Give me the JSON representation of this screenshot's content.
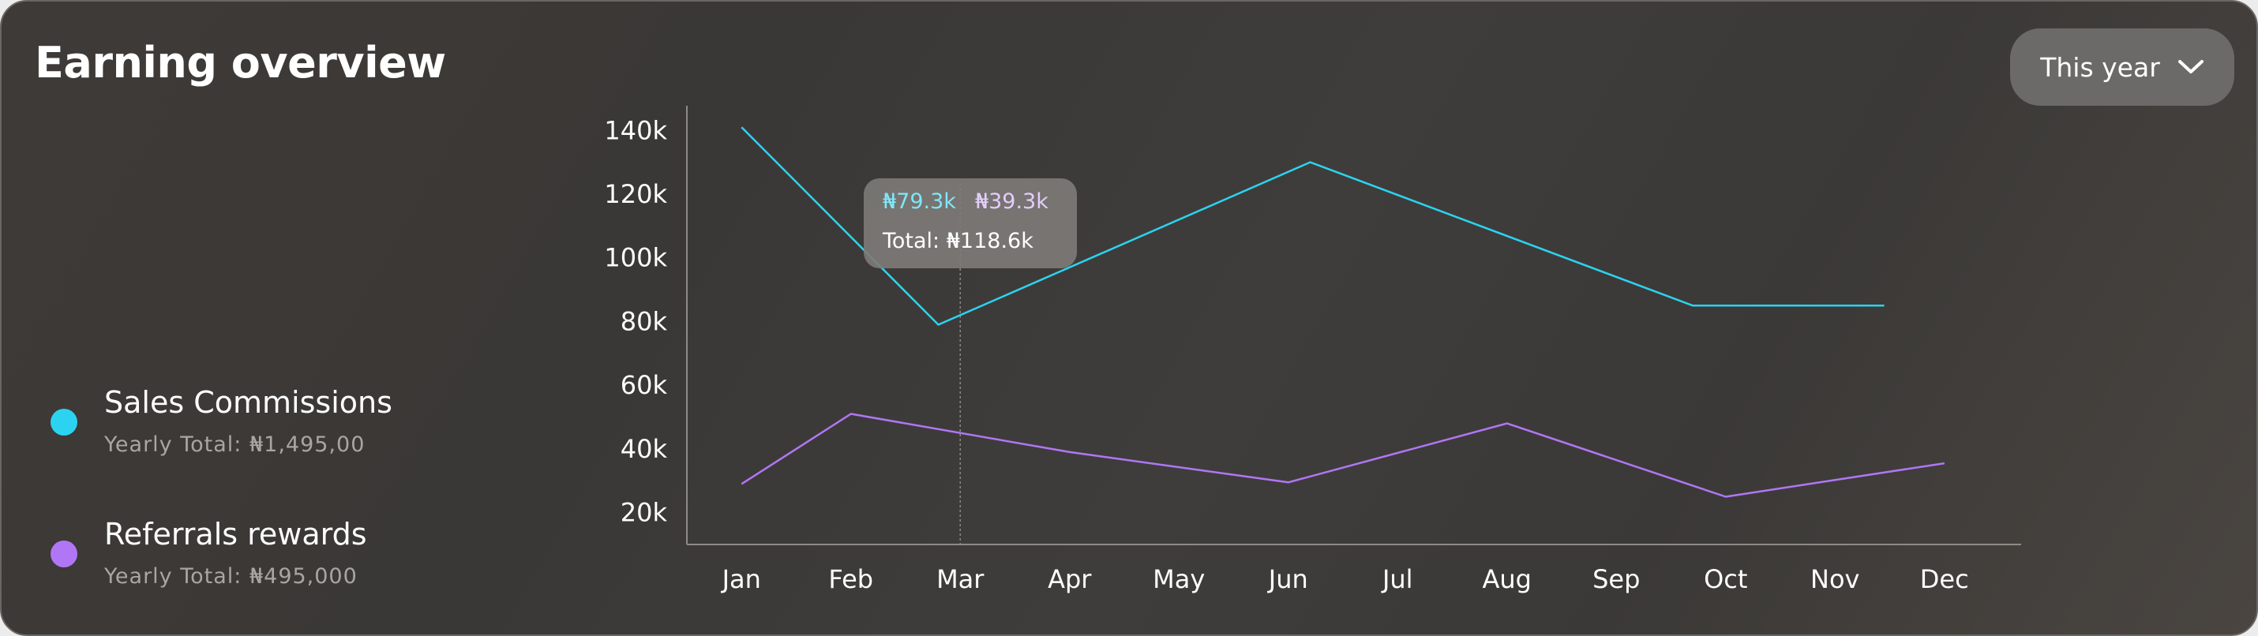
{
  "header": {
    "title": "Earning overview",
    "period_label": "This year",
    "period_icon": "chevron-down-icon"
  },
  "legend": [
    {
      "name": "Sales Commissions",
      "total": "Yearly Total: ₦1,495,00",
      "color": "#2bd3f0"
    },
    {
      "name": "Referrals rewards",
      "total": "Yearly Total: ₦495,000",
      "color": "#b176f5"
    }
  ],
  "tooltip": {
    "value_1": "₦79.3k",
    "value_2": "₦39.3k",
    "total": "Total: ₦118.6k",
    "month": "Mar"
  },
  "chart_data": {
    "type": "line",
    "categories": [
      "Jan",
      "Feb",
      "Mar",
      "Apr",
      "May",
      "Jun",
      "Jul",
      "Aug",
      "Sep",
      "Oct",
      "Nov",
      "Dec"
    ],
    "yticks": [
      "140k",
      "120k",
      "100k",
      "80k",
      "60k",
      "40k",
      "20k"
    ],
    "ylim": [
      10000,
      147000
    ],
    "grid": false,
    "series": [
      {
        "name": "Sales Commissions",
        "color": "#2bd3f0",
        "x": [
          0.5,
          2.3,
          5.7,
          9.2,
          10.95
        ],
        "y": [
          141000,
          79000,
          130000,
          85000,
          85000
        ]
      },
      {
        "name": "Referrals rewards",
        "color": "#b176f5",
        "x": [
          0.5,
          1.5,
          3.5,
          5.5,
          7.5,
          9.5,
          11.5
        ],
        "y": [
          29000,
          51000,
          39000,
          29500,
          48000,
          25000,
          35500
        ]
      }
    ]
  }
}
